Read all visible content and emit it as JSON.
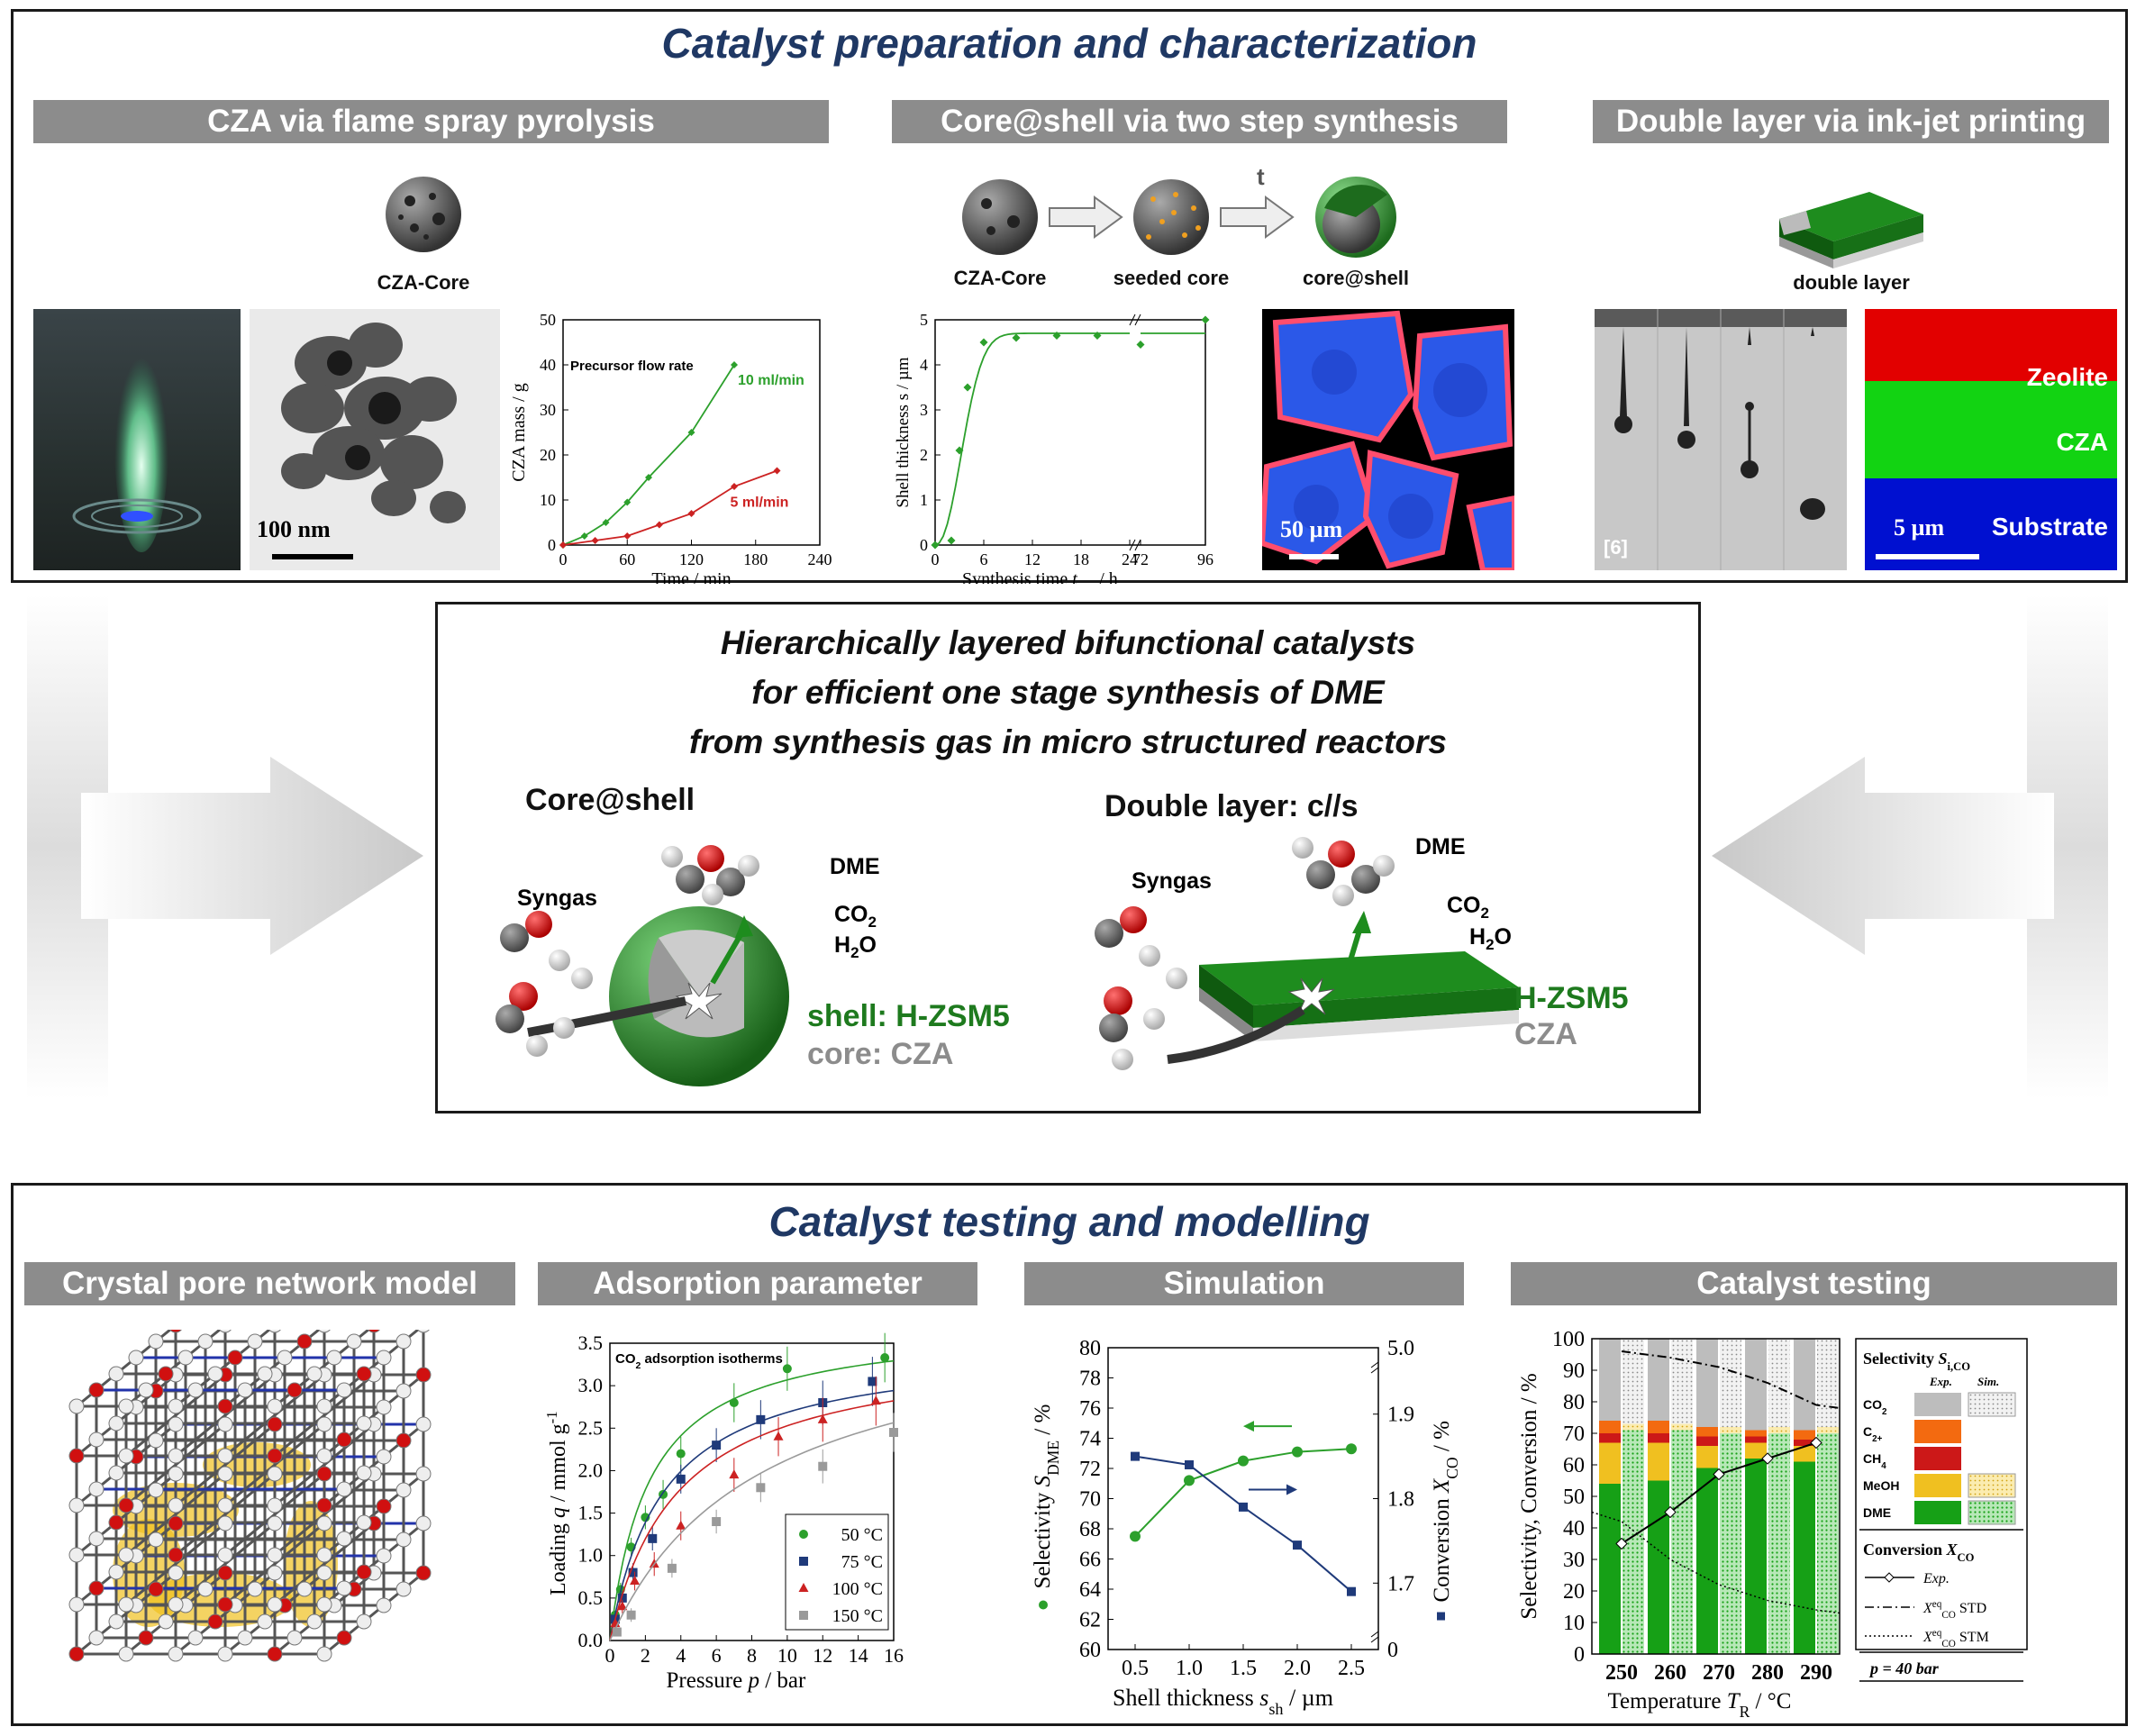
{
  "top": {
    "title": "Catalyst preparation and characterization",
    "sections": [
      "CZA via flame spray pyrolysis",
      "Core@shell via two step synthesis",
      "Double layer via ink-jet printing"
    ],
    "cza_core_label": "CZA-Core",
    "seeded_core_label": "seeded core",
    "core_shell_label": "core@shell",
    "double_layer_label": "double layer",
    "arrow_t": "t",
    "tem_scale": "100 nm",
    "edx_scale": "50 µm",
    "layer_scale": "5 µm",
    "inkjet_ref": "[6]",
    "layers": [
      "Zeolite",
      "CZA",
      "Substrate"
    ]
  },
  "middle": {
    "title_lines": [
      "Hierarchically layered bifunctional catalysts",
      "for efficient one stage synthesis of DME",
      "from synthesis gas in micro structured reactors"
    ],
    "left_heading": "Core@shell",
    "right_heading": "Double layer: c//s",
    "syngas": "Syngas",
    "dme": "DME",
    "co2": "CO",
    "co2_sub": "2",
    "h2o_a": "H",
    "h2o_sub": "2",
    "h2o_b": "O",
    "shell_label": "shell: H-ZSM5",
    "core_label": "core: CZA",
    "hzsm5": "H-ZSM5",
    "cza": "CZA"
  },
  "bottom": {
    "title": "Catalyst testing and modelling",
    "sections": [
      "Crystal pore network model",
      "Adsorption parameter",
      "Simulation",
      "Catalyst testing"
    ]
  },
  "colors": {
    "title": "#1f3864",
    "green": "#2ca02c",
    "red": "#cc2222",
    "navy": "#1f3a7a",
    "gray": "#8c8c8c"
  },
  "chart_data": [
    {
      "type": "line",
      "title": "",
      "annotation": "Precursor flow rate",
      "xlabel": "Time / min",
      "ylabel": "CZA mass / g",
      "xlim": [
        0,
        240
      ],
      "ylim": [
        0,
        50
      ],
      "xticks": [
        0,
        60,
        120,
        180,
        240
      ],
      "yticks": [
        0,
        10,
        20,
        30,
        40,
        50
      ],
      "series": [
        {
          "name": "10 ml/min",
          "color": "#2ca02c",
          "x": [
            0,
            20,
            40,
            60,
            80,
            120,
            160
          ],
          "y": [
            0,
            2,
            5,
            9.5,
            15,
            25,
            40
          ]
        },
        {
          "name": "5 ml/min",
          "color": "#cc2222",
          "x": [
            0,
            30,
            60,
            90,
            120,
            160,
            200
          ],
          "y": [
            0,
            1,
            2,
            4.5,
            7,
            13,
            16.5
          ]
        }
      ]
    },
    {
      "type": "scatter",
      "title": "",
      "xlabel_main": "Synthesis time ",
      "xlabel_var": "t",
      "xlabel_sub": "syn",
      "xlabel_unit": " / h",
      "ylabel": "Shell thickness s / µm",
      "ylim": [
        0,
        5
      ],
      "xticks": [
        "0",
        "6",
        "12",
        "18",
        "24",
        "72",
        "96"
      ],
      "yticks": [
        0,
        1,
        2,
        3,
        4,
        5
      ],
      "x": [
        0,
        2,
        3,
        4,
        6,
        10,
        15,
        20,
        72,
        96
      ],
      "y": [
        0,
        0.1,
        2.1,
        3.5,
        4.5,
        4.6,
        4.65,
        4.65,
        4.45,
        5.0
      ]
    },
    {
      "type": "scatter",
      "title": "CO2 adsorption isotherms",
      "xlabel": "Pressure p / bar",
      "ylabel": "Loading q / mmol g-1",
      "xlim": [
        0,
        16
      ],
      "ylim": [
        0,
        3.5
      ],
      "xticks": [
        0,
        2,
        4,
        6,
        8,
        10,
        12,
        14,
        16
      ],
      "yticks": [
        "0.0",
        "0.5",
        "1.0",
        "1.5",
        "2.0",
        "2.5",
        "3.0",
        "3.5"
      ],
      "series": [
        {
          "name": "50 °C",
          "color": "#2ca02c",
          "x": [
            0.3,
            0.6,
            1.2,
            2,
            3,
            4,
            7,
            10,
            15.5
          ],
          "y": [
            0.3,
            0.6,
            1.1,
            1.45,
            1.72,
            2.2,
            2.8,
            3.2,
            3.33
          ]
        },
        {
          "name": "75 °C",
          "color": "#1f3a7a",
          "x": [
            0.3,
            0.7,
            1.3,
            2.4,
            4,
            6,
            8.5,
            12,
            14.8
          ],
          "y": [
            0.25,
            0.5,
            0.8,
            1.2,
            1.9,
            2.3,
            2.6,
            2.8,
            3.05
          ]
        },
        {
          "name": "100 °C",
          "color": "#cc2222",
          "x": [
            0.3,
            0.7,
            1.4,
            2.5,
            4,
            7,
            9.5,
            12,
            15
          ],
          "y": [
            0.2,
            0.4,
            0.7,
            0.9,
            1.35,
            1.95,
            2.4,
            2.6,
            2.82
          ]
        },
        {
          "name": "150 °C",
          "color": "#9a9a9a",
          "x": [
            0.4,
            1.2,
            3.5,
            6,
            8.5,
            12,
            16
          ],
          "y": [
            0.1,
            0.3,
            0.85,
            1.4,
            1.8,
            2.05,
            2.45
          ]
        }
      ]
    },
    {
      "type": "line",
      "title": "",
      "xlabel_main": "Shell thickness ",
      "xlabel_var": "s",
      "xlabel_sub": "sh",
      "xlabel_unit": " / µm",
      "ylabel_left": "Selectivity S_DME / %",
      "ylabel_right": "Conversion X_CO / %",
      "xticks": [
        "0.5",
        "1.0",
        "1.5",
        "2.0",
        "2.5"
      ],
      "yticks_left": [
        "60",
        "62",
        "64",
        "66",
        "68",
        "70",
        "72",
        "74",
        "76",
        "78",
        "80"
      ],
      "yticks_right": [
        "0",
        "1.7",
        "1.8",
        "1.9",
        "5.0"
      ],
      "series": [
        {
          "name": "Selectivity",
          "color": "#2ca02c",
          "x": [
            0.5,
            1.0,
            1.5,
            2.0,
            2.5
          ],
          "y": [
            67.5,
            71.2,
            72.5,
            73.1,
            73.3
          ]
        },
        {
          "name": "Conversion",
          "color": "#1f3a7a",
          "x": [
            0.5,
            1.0,
            1.5,
            2.0,
            2.5
          ],
          "y": [
            1.85,
            1.84,
            1.79,
            1.745,
            1.69
          ]
        }
      ]
    },
    {
      "type": "bar",
      "title": "",
      "xlabel_main": "Temperature ",
      "xlabel_var": "T",
      "xlabel_sub": "R",
      "xlabel_unit": " / °C",
      "ylabel": "Selectivity, Conversion / %",
      "categories": [
        "250",
        "260",
        "270",
        "280",
        "290"
      ],
      "yticks": [
        0,
        10,
        20,
        30,
        40,
        50,
        60,
        70,
        80,
        90,
        100
      ],
      "stacks_exp": [
        {
          "DME": 54,
          "MeOH": 13,
          "CH4": 3,
          "C2+": 4,
          "CO2": 26
        },
        {
          "DME": 55,
          "MeOH": 12,
          "CH4": 3,
          "C2+": 4,
          "CO2": 26
        },
        {
          "DME": 59,
          "MeOH": 7,
          "CH4": 3,
          "C2+": 3,
          "CO2": 28
        },
        {
          "DME": 62,
          "MeOH": 5,
          "CH4": 2,
          "C2+": 2,
          "CO2": 29
        },
        {
          "DME": 61,
          "MeOH": 5,
          "CH4": 2,
          "C2+": 3,
          "CO2": 29
        }
      ],
      "stacks_sim": [
        {
          "DME": 71,
          "MeOH": 2,
          "CO2": 27
        },
        {
          "DME": 71,
          "MeOH": 2,
          "CO2": 27
        },
        {
          "DME": 70,
          "MeOH": 2,
          "CO2": 28
        },
        {
          "DME": 70,
          "MeOH": 2,
          "CO2": 28
        },
        {
          "DME": 70,
          "MeOH": 2,
          "CO2": 28
        }
      ],
      "conversion_exp": [
        35,
        45,
        57,
        62,
        67
      ],
      "conversion_std": [
        96,
        94,
        91,
        86,
        79
      ],
      "conversion_stm": [
        42,
        30,
        22,
        17,
        14
      ],
      "legend": {
        "selectivity_title": "Selectivity ",
        "selectivity_var": "S",
        "selectivity_sub": "i,CO",
        "col_exp": "Exp.",
        "col_sim": "Sim.",
        "rows": [
          "CO2",
          "C2+",
          "CH4",
          "MeOH",
          "DME"
        ],
        "conversion_title": "Conversion ",
        "conversion_var": "X",
        "conversion_sub": "CO",
        "line_exp": "Exp.",
        "line_std": "STD",
        "line_stm": "STM",
        "xeq_var": "X",
        "xeq_sup": "eq",
        "xeq_sub": "CO",
        "pressure": "p = 40 bar"
      }
    }
  ]
}
